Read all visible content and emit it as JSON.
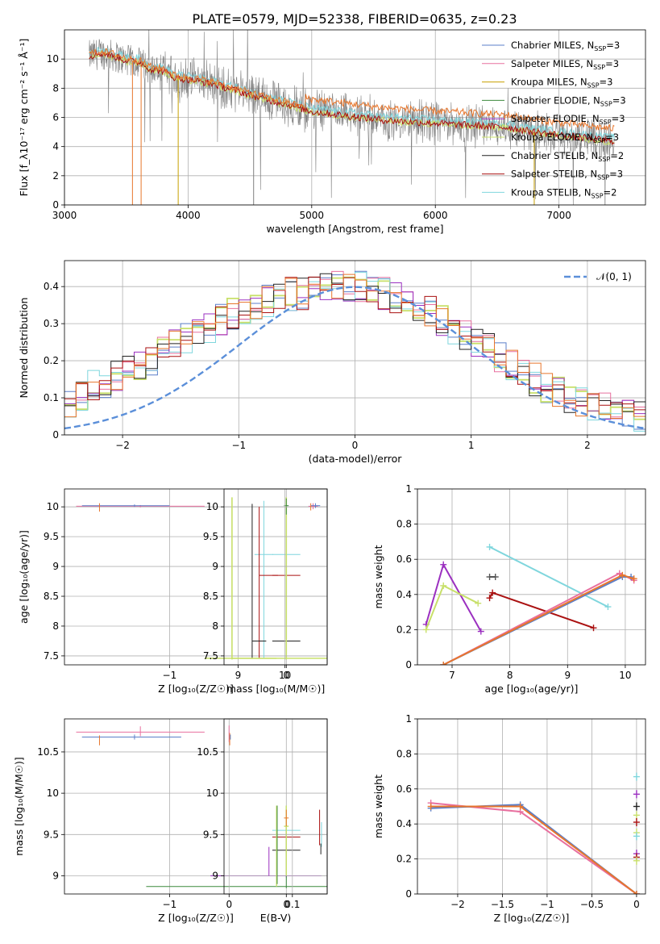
{
  "figure_title": "PLATE=0579, MJD=52338, FIBERID=0635, z=0.23",
  "colors": {
    "chabrier_miles": "#5b7fc9",
    "salpeter_miles": "#e8709f",
    "kroupa_miles": "#c8a000",
    "chabrier_elodie": "#3d8a3d",
    "salpeter_elodie": "#9b30c0",
    "kroupa_elodie": "#c8e06a",
    "chabrier_stelib": "#222222",
    "salpeter_stelib": "#aa1111",
    "kroupa_stelib": "#7fd6dd",
    "data": "#808080",
    "model_orange": "#e8762c",
    "normal": "#5b8fd9"
  },
  "chart_data": [
    {
      "id": "spectrum",
      "type": "line",
      "xlabel": "wavelength [Angstrom, rest frame]",
      "ylabel": "Flux [f_λ10⁻¹⁷ erg cm⁻² s⁻¹ Å⁻¹]",
      "xlim": [
        3000,
        7700
      ],
      "ylim": [
        0,
        12
      ],
      "xticks": [
        3000,
        4000,
        5000,
        6000,
        7000
      ],
      "yticks": [
        0,
        2,
        4,
        6,
        8,
        10
      ],
      "legend_position": "top-right",
      "legend": [
        {
          "name": "Chabrier MILES, N",
          "sub": "SSP",
          "n": "=3",
          "color": "#5b7fc9"
        },
        {
          "name": "Salpeter MILES, N",
          "sub": "SSP",
          "n": "=3",
          "color": "#e8709f"
        },
        {
          "name": "Kroupa MILES, N",
          "sub": "SSP",
          "n": "=3",
          "color": "#c8a000"
        },
        {
          "name": "Chabrier ELODIE, N",
          "sub": "SSP",
          "n": "=3",
          "color": "#3d8a3d"
        },
        {
          "name": "Salpeter ELODIE, N",
          "sub": "SSP",
          "n": "=3",
          "color": "#9b30c0"
        },
        {
          "name": "Kroupa ELODIE, N",
          "sub": "SSP",
          "n": "=3",
          "color": "#c8e06a"
        },
        {
          "name": "Chabrier STELIB, N",
          "sub": "SSP",
          "n": "=2",
          "color": "#222222"
        },
        {
          "name": "Salpeter STELIB, N",
          "sub": "SSP",
          "n": "=3",
          "color": "#aa1111"
        },
        {
          "name": "Kroupa STELIB, N",
          "sub": "SSP",
          "n": "=2",
          "color": "#7fd6dd"
        }
      ],
      "continuum_points": [
        [
          3200,
          10.2
        ],
        [
          3300,
          10.4
        ],
        [
          3400,
          10.2
        ],
        [
          3500,
          9.9
        ],
        [
          3600,
          9.8
        ],
        [
          3700,
          9.3
        ],
        [
          3800,
          9.2
        ],
        [
          3900,
          8.7
        ],
        [
          4000,
          8.6
        ],
        [
          4200,
          8.3
        ],
        [
          4400,
          7.8
        ],
        [
          4600,
          7.3
        ],
        [
          4800,
          6.9
        ],
        [
          5000,
          6.4
        ],
        [
          5200,
          6.2
        ],
        [
          5400,
          6.0
        ],
        [
          5600,
          5.8
        ],
        [
          5800,
          5.7
        ],
        [
          6000,
          5.6
        ],
        [
          6200,
          5.5
        ],
        [
          6400,
          5.4
        ],
        [
          6600,
          5.3
        ],
        [
          6800,
          5.0
        ],
        [
          7000,
          4.8
        ],
        [
          7200,
          4.6
        ],
        [
          7400,
          4.4
        ]
      ]
    },
    {
      "id": "residuals",
      "type": "line",
      "xlabel": "(data-model)/error",
      "ylabel": "Normed distribution",
      "xlim": [
        -2.5,
        2.5
      ],
      "ylim": [
        0,
        0.47
      ],
      "xticks": [
        -2,
        -1,
        0,
        1,
        2
      ],
      "yticks": [
        0.0,
        0.1,
        0.2,
        0.3,
        0.4
      ],
      "legend_position": "top-right",
      "legend": [
        {
          "name": "𝒩(0, 1)",
          "style": "dashed",
          "color": "#5b8fd9"
        }
      ],
      "hist_shape": [
        0.09,
        0.11,
        0.13,
        0.14,
        0.16,
        0.17,
        0.19,
        0.2,
        0.22,
        0.24,
        0.26,
        0.27,
        0.29,
        0.31,
        0.33,
        0.33,
        0.34,
        0.36,
        0.37,
        0.38,
        0.38,
        0.39,
        0.39,
        0.4,
        0.4,
        0.4,
        0.39,
        0.38,
        0.37,
        0.36,
        0.34,
        0.33,
        0.31,
        0.29,
        0.27,
        0.25,
        0.23,
        0.21,
        0.19,
        0.17,
        0.15,
        0.13,
        0.11,
        0.1,
        0.09,
        0.08,
        0.07,
        0.06,
        0.05,
        0.05
      ]
    },
    {
      "id": "age_vs_z",
      "type": "scatter",
      "xlabel": "Z [log₁₀(Z/Z☉)]",
      "ylabel": "age [log₁₀(age/yr)]",
      "xlim": [
        -1.9,
        0.35
      ],
      "ylim": [
        7.35,
        10.3
      ],
      "xticks": [
        -1,
        0
      ],
      "yticks": [
        7.5,
        8.0,
        8.5,
        9.0,
        9.5,
        10.0
      ]
    },
    {
      "id": "age_vs_mass",
      "type": "scatter",
      "xlabel": "mass [log₁₀(M/M☉)]",
      "ylabel": "",
      "xlim": [
        8.7,
        10.9
      ],
      "ylim": [
        7.35,
        10.3
      ],
      "xticks": [
        9,
        10
      ],
      "yticks": [
        7.5,
        8.0,
        8.5,
        9.0,
        9.5,
        10.0
      ]
    },
    {
      "id": "weight_vs_age",
      "type": "line",
      "xlabel": "age [log₁₀(age/yr)]",
      "ylabel": "mass weight",
      "xlim": [
        6.4,
        10.35
      ],
      "ylim": [
        0,
        1
      ],
      "xticks": [
        7,
        8,
        9,
        10
      ],
      "yticks": [
        0.0,
        0.2,
        0.4,
        0.6,
        0.8,
        1.0
      ],
      "series": [
        {
          "color": "#9b30c0",
          "x": [
            6.55,
            6.85,
            7.5
          ],
          "y": [
            0.23,
            0.57,
            0.19
          ]
        },
        {
          "color": "#c8e06a",
          "x": [
            6.55,
            6.85,
            7.45
          ],
          "y": [
            0.2,
            0.45,
            0.35
          ]
        },
        {
          "color": "#7fd6dd",
          "x": [
            7.65,
            9.7
          ],
          "y": [
            0.67,
            0.33
          ]
        },
        {
          "color": "#aa1111",
          "x": [
            7.65,
            7.7,
            9.45
          ],
          "y": [
            0.38,
            0.41,
            0.21
          ]
        },
        {
          "color": "#e8709f",
          "x": [
            6.85,
            9.9,
            10.15
          ],
          "y": [
            0.0,
            0.52,
            0.48
          ]
        },
        {
          "color": "#5b7fc9",
          "x": [
            6.85,
            9.95,
            10.1
          ],
          "y": [
            0.0,
            0.5,
            0.5
          ]
        },
        {
          "color": "#e8762c",
          "x": [
            6.85,
            9.95,
            10.15
          ],
          "y": [
            0.0,
            0.51,
            0.49
          ]
        },
        {
          "color": "#555555",
          "x": [
            7.65,
            7.75
          ],
          "y": [
            0.5,
            0.5
          ]
        }
      ]
    },
    {
      "id": "mass_vs_z",
      "type": "scatter",
      "xlabel": "Z [log₁₀(Z/Z☉)]",
      "ylabel": "mass [log₁₀(M/M☉)]",
      "xlim": [
        -1.9,
        0.35
      ],
      "ylim": [
        8.78,
        10.9
      ],
      "xticks": [
        -1,
        0
      ],
      "yticks": [
        9.0,
        9.5,
        10.0,
        10.5
      ]
    },
    {
      "id": "mass_vs_ebv",
      "type": "scatter",
      "xlabel": "E(B-V)",
      "ylabel": "",
      "xlim": [
        -0.008,
        0.155
      ],
      "ylim": [
        8.78,
        10.9
      ],
      "xticks": [
        0.0,
        0.1
      ],
      "yticks": [
        9.0,
        9.5,
        10.0,
        10.5
      ]
    },
    {
      "id": "weight_vs_z",
      "type": "line",
      "xlabel": "Z [log₁₀(Z/Z☉)]",
      "ylabel": "mass weight",
      "xlim": [
        -2.45,
        0.1
      ],
      "ylim": [
        0,
        1
      ],
      "xticks": [
        -2.0,
        -1.5,
        -1.0,
        -0.5,
        0.0
      ],
      "yticks": [
        0.0,
        0.2,
        0.4,
        0.6,
        0.8,
        1.0
      ],
      "series": [
        {
          "color": "#e8709f",
          "x": [
            -2.3,
            -1.3,
            0.0
          ],
          "y": [
            0.52,
            0.47,
            0.0
          ]
        },
        {
          "color": "#5b7fc9",
          "x": [
            -2.3,
            -1.3,
            0.0
          ],
          "y": [
            0.49,
            0.51,
            0.0
          ]
        },
        {
          "color": "#e8762c",
          "x": [
            -2.3,
            -1.3,
            0.0
          ],
          "y": [
            0.5,
            0.5,
            0.0
          ]
        }
      ]
    }
  ]
}
